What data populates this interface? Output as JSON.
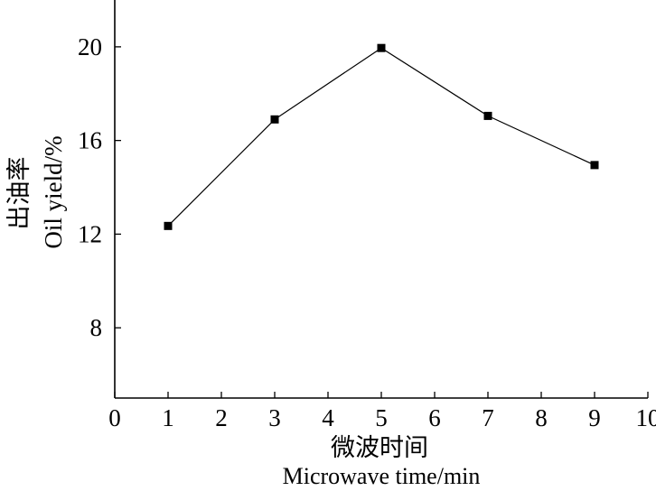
{
  "chart_data": {
    "type": "line",
    "xlabel_zh": "微波时间",
    "xlabel_en": "Microwave time/min",
    "ylabel_zh": "出油率",
    "ylabel_en": "Oil yield/%",
    "xlim": [
      0,
      10
    ],
    "ylim": [
      5,
      22
    ],
    "xticks": [
      0,
      1,
      2,
      3,
      4,
      5,
      6,
      7,
      8,
      9,
      10
    ],
    "yticks": [
      8,
      12,
      16,
      20
    ],
    "grid": false,
    "series": [
      {
        "marker": "square",
        "x": [
          1,
          3,
          5,
          7,
          9
        ],
        "y": [
          12.35,
          16.9,
          19.95,
          17.05,
          14.95
        ]
      }
    ]
  }
}
